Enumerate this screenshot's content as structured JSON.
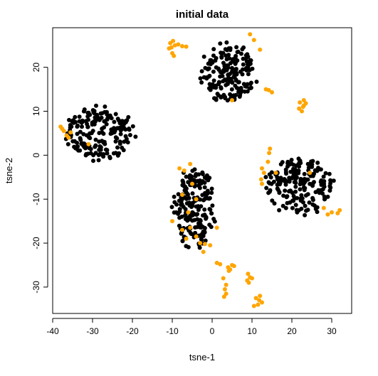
{
  "chart_data": {
    "type": "scatter",
    "title": "initial data",
    "xlabel": "tsne-1",
    "ylabel": "tsne-2",
    "xlim": [
      -40,
      35
    ],
    "ylim": [
      -36,
      29
    ],
    "xticks": [
      -40,
      -30,
      -20,
      -10,
      0,
      10,
      20,
      30
    ],
    "yticks": [
      -30,
      -20,
      -10,
      0,
      10,
      20
    ],
    "grid": false,
    "colors": {
      "black": "#000000",
      "orange": "#FFA500"
    },
    "clusters": [
      {
        "color": "black",
        "cx": -28.5,
        "cy": 5,
        "rx": 9.5,
        "ry": 6.8,
        "n": 190,
        "seed": 11
      },
      {
        "color": "black",
        "cx": 4,
        "cy": 18.5,
        "rx": 7.5,
        "ry": 8,
        "n": 190,
        "seed": 23
      },
      {
        "color": "black",
        "cx": -4.5,
        "cy": -12,
        "rx": 6,
        "ry": 10,
        "n": 200,
        "seed": 37
      },
      {
        "color": "black",
        "cx": 22,
        "cy": -7,
        "rx": 9.5,
        "ry": 7,
        "n": 190,
        "seed": 51
      }
    ],
    "orange_points": [
      [
        -10.5,
        25.5
      ],
      [
        -9.8,
        26
      ],
      [
        -9.3,
        25
      ],
      [
        -10.2,
        24.5
      ],
      [
        -8.5,
        25.2
      ],
      [
        -7.5,
        24.8
      ],
      [
        -6.5,
        24.7
      ],
      [
        -10,
        23.2
      ],
      [
        -9.6,
        22.6
      ],
      [
        -10.8,
        24.3
      ],
      [
        -38,
        6.5
      ],
      [
        -37.2,
        5.5
      ],
      [
        -36.5,
        4.5
      ],
      [
        -37.6,
        6
      ],
      [
        -36,
        4
      ],
      [
        -35.5,
        5.2
      ],
      [
        -31,
        2.5
      ],
      [
        22,
        12
      ],
      [
        23,
        11.3
      ],
      [
        22.5,
        10
      ],
      [
        23,
        12.5
      ],
      [
        22.8,
        11
      ],
      [
        23.5,
        11.8
      ],
      [
        21.8,
        10.6
      ],
      [
        15,
        14.3
      ],
      [
        14.2,
        14.8
      ],
      [
        13.5,
        15
      ],
      [
        9.5,
        27.5
      ],
      [
        10.5,
        26.2
      ],
      [
        12,
        24
      ],
      [
        5,
        12.5
      ],
      [
        14.5,
        1.5
      ],
      [
        14.3,
        0.5
      ],
      [
        14,
        -1.5
      ],
      [
        12.5,
        -3
      ],
      [
        13,
        -4
      ],
      [
        12.3,
        -5.5
      ],
      [
        12.5,
        -6.5
      ],
      [
        16,
        -4
      ],
      [
        24.5,
        -4
      ],
      [
        28,
        -12
      ],
      [
        29,
        -13.5
      ],
      [
        30,
        -13
      ],
      [
        31.5,
        -13.2
      ],
      [
        32,
        -12.5
      ],
      [
        -8.2,
        -3
      ],
      [
        -7,
        -3.5
      ],
      [
        -5.5,
        -2
      ],
      [
        -5,
        -6.5
      ],
      [
        -7.5,
        -9
      ],
      [
        -4,
        -10
      ],
      [
        -10,
        -15
      ],
      [
        -6,
        -13
      ],
      [
        -5.5,
        -16.5
      ],
      [
        -7.5,
        -17
      ],
      [
        -6.5,
        -19
      ],
      [
        -4,
        -18.5
      ],
      [
        -3,
        -20
      ],
      [
        -1.8,
        -20.2
      ],
      [
        1.2,
        -16.5
      ],
      [
        -0.5,
        -20.5
      ],
      [
        -2.2,
        -22
      ],
      [
        1.2,
        -24.5
      ],
      [
        2,
        -24.8
      ],
      [
        4,
        -25.5
      ],
      [
        4.5,
        -26
      ],
      [
        5,
        -25
      ],
      [
        5.5,
        -25.2
      ],
      [
        4.2,
        -26.3
      ],
      [
        2.8,
        -28
      ],
      [
        3.5,
        -29.5
      ],
      [
        3.2,
        -30.5
      ],
      [
        3.5,
        -31.5
      ],
      [
        3,
        -32.2
      ],
      [
        9,
        -27
      ],
      [
        9.5,
        -27.8
      ],
      [
        8.8,
        -28.5
      ],
      [
        9.2,
        -29
      ],
      [
        10,
        -28
      ],
      [
        11,
        -32.5
      ],
      [
        11.8,
        -33
      ],
      [
        12.5,
        -33.5
      ],
      [
        10.5,
        -34.3
      ],
      [
        11.5,
        -34
      ],
      [
        12,
        -32
      ]
    ]
  }
}
